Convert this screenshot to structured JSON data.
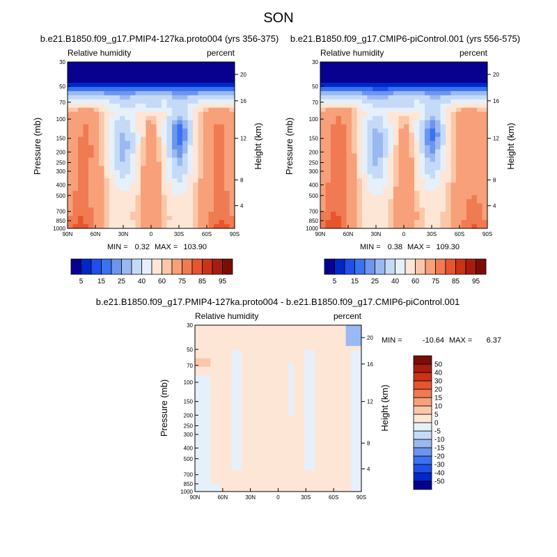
{
  "figure": {
    "season": "SON",
    "colors": {
      "seq": [
        "#08008f",
        "#0028c8",
        "#1f4fe8",
        "#3a72f0",
        "#6d95ee",
        "#9ab9f2",
        "#c5daf6",
        "#e6f0fb",
        "#fde6d6",
        "#fbc7a8",
        "#f7a07a",
        "#f07a52",
        "#e6552e",
        "#cc3216",
        "#a61d10",
        "#7a0d08"
      ],
      "div": [
        "#08008f",
        "#0028c8",
        "#1f4fe8",
        "#3a72f0",
        "#6d95ee",
        "#9ab9f2",
        "#c5daf6",
        "#e6f0fb",
        "#fde6d6",
        "#fbc7a8",
        "#f7a07a",
        "#f07a52",
        "#e6552e",
        "#cc3216",
        "#a61d10",
        "#7a0d08"
      ]
    }
  },
  "chart_data": [
    {
      "type": "heatmap",
      "title": "b.e21.B1850.f09_g17.PMIP4-127ka.proto004 (yrs 356-375)",
      "left_label": "Relative humidity",
      "right_label": "percent",
      "ylabel": "Pressure (mb)",
      "ylabel_right": "Height (km)",
      "x_ticks": [
        "90N",
        "60N",
        "30N",
        "0",
        "30S",
        "60S",
        "90S"
      ],
      "y_ticks": [
        "30",
        "50",
        "70",
        "100",
        "150",
        "200",
        "250",
        "300",
        "400",
        "500",
        "700",
        "850",
        "1000"
      ],
      "y_right_ticks": [
        "20",
        "16",
        "12",
        "8",
        "4"
      ],
      "stat_min_label": "MIN =",
      "stat_min": "0.32",
      "stat_max_label": "MAX =",
      "stat_max": "103.90",
      "colorbar_labels": [
        "5",
        "15",
        "25",
        "40",
        "60",
        "75",
        "85",
        "95"
      ],
      "field_variant": 0
    },
    {
      "type": "heatmap",
      "title": "b.e21.B1850.f09_g17.CMIP6-piControl.001 (yrs 556-575)",
      "left_label": "Relative humidity",
      "right_label": "percent",
      "ylabel": "Pressure (mb)",
      "ylabel_right": "Height (km)",
      "x_ticks": [
        "90N",
        "60N",
        "30N",
        "0",
        "30S",
        "60S",
        "90S"
      ],
      "y_ticks": [
        "30",
        "50",
        "70",
        "100",
        "150",
        "200",
        "250",
        "300",
        "400",
        "500",
        "700",
        "850",
        "1000"
      ],
      "y_right_ticks": [
        "20",
        "16",
        "12",
        "8",
        "4"
      ],
      "stat_min_label": "MIN =",
      "stat_min": "0.38",
      "stat_max_label": "MAX =",
      "stat_max": "109.30",
      "colorbar_labels": [
        "5",
        "15",
        "25",
        "40",
        "60",
        "75",
        "85",
        "95"
      ],
      "field_variant": 1
    },
    {
      "type": "heatmap",
      "title": "b.e21.B1850.f09_g17.PMIP4-127ka.proto004 - b.e21.B1850.f09_g17.CMIP6-piControl.001",
      "left_label": "Relative humidity",
      "right_label": "percent",
      "ylabel": "Pressure (mb)",
      "ylabel_right": "Height (km)",
      "x_ticks": [
        "90N",
        "60N",
        "30N",
        "0",
        "30S",
        "60S",
        "90S"
      ],
      "y_ticks": [
        "30",
        "50",
        "70",
        "100",
        "150",
        "200",
        "250",
        "300",
        "400",
        "500",
        "700",
        "850",
        "1000"
      ],
      "y_right_ticks": [
        "20",
        "16",
        "12",
        "8",
        "4"
      ],
      "stat_min_label": "MIN =",
      "stat_min": "-10.64",
      "stat_max_label": "MAX =",
      "stat_max": "6.37",
      "colorbar_labels": [
        "50",
        "40",
        "30",
        "20",
        "15",
        "10",
        "5",
        "0",
        "-5",
        "-10",
        "-15",
        "-20",
        "-30",
        "-40",
        "-50"
      ]
    }
  ]
}
